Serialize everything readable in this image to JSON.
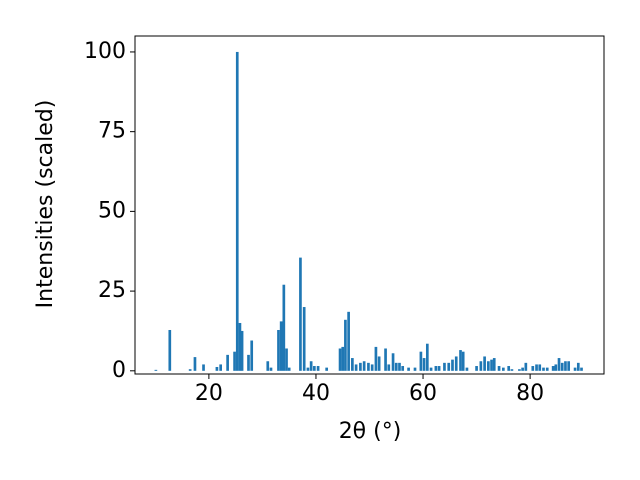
{
  "chart_data": {
    "type": "bar",
    "xlabel": "2θ (°)",
    "ylabel": "Intensities (scaled)",
    "color": "#1f77b4",
    "x": [
      10.1,
      12.7,
      16.5,
      17.4,
      19.0,
      21.5,
      22.2,
      23.5,
      24.8,
      25.3,
      25.8,
      26.2,
      27.4,
      28.0,
      31.0,
      31.6,
      33.0,
      33.5,
      34.0,
      34.5,
      35.0,
      37.1,
      37.8,
      38.5,
      39.1,
      39.7,
      40.4,
      42.0,
      44.5,
      45.0,
      45.5,
      46.1,
      46.8,
      47.5,
      48.3,
      49.0,
      49.8,
      50.5,
      51.2,
      51.8,
      53.0,
      53.6,
      54.4,
      55.0,
      55.6,
      56.2,
      57.3,
      58.5,
      59.6,
      60.2,
      60.8,
      61.5,
      62.4,
      63.0,
      64.0,
      64.8,
      65.5,
      66.2,
      67.0,
      67.5,
      68.2,
      70.0,
      70.8,
      71.5,
      72.2,
      72.8,
      73.3,
      74.2,
      75.0,
      76.0,
      76.6,
      78.0,
      78.6,
      79.2,
      80.5,
      81.2,
      81.8,
      82.5,
      83.2,
      84.3,
      84.8,
      85.4,
      86.0,
      86.6,
      87.2,
      88.4,
      89.0,
      89.6
    ],
    "values": [
      0.3,
      12.8,
      0.5,
      4.3,
      2,
      1.2,
      2,
      5,
      6,
      100,
      15,
      12.5,
      5,
      9.5,
      3,
      1,
      12.8,
      15.5,
      27,
      7,
      1,
      35.5,
      20,
      1,
      3,
      1.5,
      1.5,
      1,
      7,
      7.5,
      16,
      18.5,
      4,
      2,
      2.5,
      3,
      2.5,
      2,
      7.5,
      4.5,
      7,
      2,
      5.5,
      2.5,
      2.5,
      1.5,
      1,
      1,
      6,
      4,
      8.5,
      1,
      1.5,
      1.5,
      2.5,
      2.5,
      3.5,
      4.5,
      6.5,
      6,
      1,
      1.5,
      3,
      4.5,
      3,
      3.5,
      4,
      1.5,
      1,
      1.5,
      0.5,
      0.5,
      1,
      2.5,
      1.5,
      2,
      2,
      1,
      1,
      1.5,
      2,
      4,
      2.5,
      3,
      3,
      1,
      2.5,
      1
    ],
    "xlim": [
      6.2,
      93.8
    ],
    "xticks": [
      20,
      40,
      60,
      80
    ],
    "ylim": [
      -1,
      105
    ],
    "yticks": [
      0,
      25,
      50,
      75,
      100
    ]
  }
}
